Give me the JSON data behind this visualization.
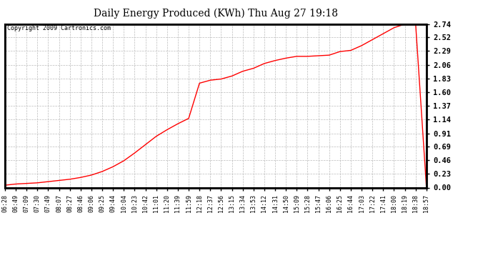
{
  "title": "Daily Energy Produced (KWh) Thu Aug 27 19:18",
  "copyright": "Copyright 2009 Cartronics.com",
  "line_color": "#ff0000",
  "bg_color": "#ffffff",
  "plot_bg_color": "#ffffff",
  "grid_color": "#bbbbbb",
  "yticks": [
    0.0,
    0.23,
    0.46,
    0.69,
    0.91,
    1.14,
    1.37,
    1.6,
    1.83,
    2.06,
    2.29,
    2.52,
    2.74
  ],
  "ymax": 2.74,
  "ymin": 0.0,
  "xtick_labels": [
    "06:28",
    "06:49",
    "07:09",
    "07:30",
    "07:49",
    "08:07",
    "08:27",
    "08:46",
    "09:06",
    "09:25",
    "09:44",
    "10:04",
    "10:23",
    "10:42",
    "11:01",
    "11:20",
    "11:39",
    "11:59",
    "12:18",
    "12:37",
    "12:56",
    "13:15",
    "13:34",
    "13:53",
    "14:12",
    "14:31",
    "14:50",
    "15:09",
    "15:28",
    "15:47",
    "16:06",
    "16:25",
    "16:44",
    "17:03",
    "17:22",
    "17:41",
    "18:00",
    "18:19",
    "18:38",
    "18:57"
  ],
  "x_values": [
    0,
    1,
    2,
    3,
    4,
    5,
    6,
    7,
    8,
    9,
    10,
    11,
    12,
    13,
    14,
    15,
    16,
    17,
    18,
    19,
    20,
    21,
    22,
    23,
    24,
    25,
    26,
    27,
    28,
    29,
    30,
    31,
    32,
    33,
    34,
    35,
    36,
    37,
    38,
    39
  ],
  "y_values": [
    0.04,
    0.06,
    0.07,
    0.08,
    0.1,
    0.12,
    0.14,
    0.17,
    0.21,
    0.27,
    0.35,
    0.45,
    0.58,
    0.72,
    0.86,
    0.97,
    1.07,
    1.16,
    1.75,
    1.8,
    1.82,
    1.87,
    1.95,
    2.0,
    2.08,
    2.13,
    2.17,
    2.2,
    2.2,
    2.21,
    2.22,
    2.28,
    2.3,
    2.38,
    2.48,
    2.58,
    2.68,
    2.74,
    2.74,
    0.0
  ],
  "figwidth": 6.9,
  "figheight": 3.75,
  "dpi": 100
}
